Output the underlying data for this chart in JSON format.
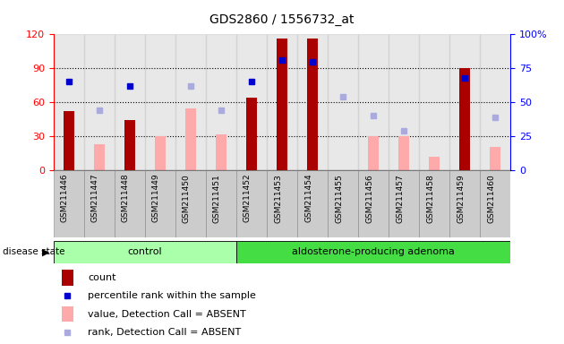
{
  "title": "GDS2860 / 1556732_at",
  "samples": [
    "GSM211446",
    "GSM211447",
    "GSM211448",
    "GSM211449",
    "GSM211450",
    "GSM211451",
    "GSM211452",
    "GSM211453",
    "GSM211454",
    "GSM211455",
    "GSM211456",
    "GSM211457",
    "GSM211458",
    "GSM211459",
    "GSM211460"
  ],
  "n_control": 6,
  "n_adenoma": 9,
  "count": [
    52,
    null,
    44,
    null,
    null,
    null,
    64,
    116,
    116,
    null,
    null,
    null,
    null,
    90,
    null
  ],
  "count_absent": [
    null,
    23,
    null,
    30,
    55,
    32,
    null,
    null,
    null,
    null,
    30,
    30,
    12,
    null,
    21
  ],
  "percentile_rank": [
    65,
    null,
    62,
    null,
    null,
    null,
    65,
    81,
    80,
    null,
    null,
    null,
    null,
    68,
    null
  ],
  "rank_absent": [
    null,
    44,
    null,
    null,
    62,
    44,
    null,
    null,
    null,
    54,
    40,
    29,
    null,
    null,
    39
  ],
  "ylim_left": [
    0,
    120
  ],
  "ylim_right": [
    0,
    100
  ],
  "yticks_left": [
    0,
    30,
    60,
    90,
    120
  ],
  "yticks_right": [
    0,
    25,
    50,
    75,
    100
  ],
  "ytick_right_labels": [
    "0",
    "25",
    "50",
    "75",
    "100%"
  ],
  "color_count": "#aa0000",
  "color_count_absent": "#ffaaaa",
  "color_rank": "#0000cc",
  "color_rank_absent": "#aaaadd",
  "color_control_bg": "#aaffaa",
  "color_adenoma_bg": "#44dd44",
  "bar_width": 0.5,
  "legend_items": [
    {
      "label": "count",
      "color": "#aa0000",
      "type": "bar"
    },
    {
      "label": "percentile rank within the sample",
      "color": "#0000cc",
      "type": "square"
    },
    {
      "label": "value, Detection Call = ABSENT",
      "color": "#ffaaaa",
      "type": "bar"
    },
    {
      "label": "rank, Detection Call = ABSENT",
      "color": "#aaaadd",
      "type": "square"
    }
  ]
}
